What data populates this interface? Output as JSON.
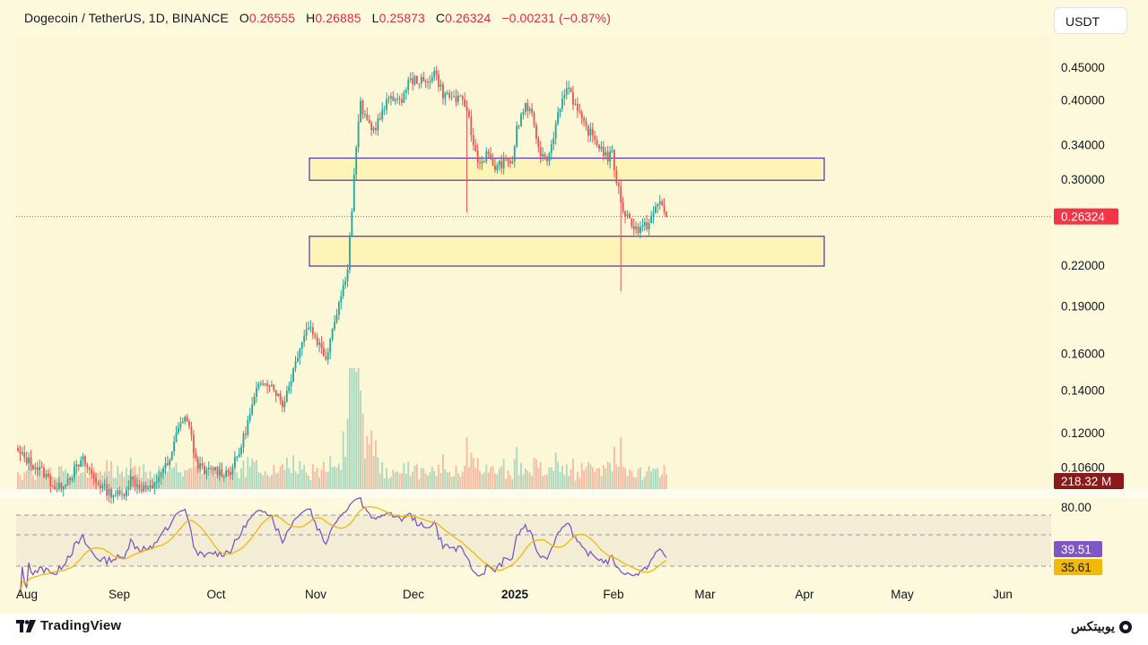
{
  "header": {
    "symbol": "Dogecoin / TetherUS, 1D, BINANCE",
    "o_label": "O",
    "o_value": "0.26555",
    "h_label": "H",
    "h_value": "0.26885",
    "l_label": "L",
    "l_value": "0.25873",
    "c_label": "C",
    "c_value": "0.26324",
    "change": "−0.00231 (−0.87%)"
  },
  "currency_button": "USDT",
  "footer": {
    "brand": "TradingView",
    "partner": "یوبیتکس"
  },
  "colors": {
    "background": "#fdf9dc",
    "bull": "#26a69a",
    "bear": "#ef5350",
    "zone_fill": "#fff4b8",
    "zone_border": "#5b3fa8",
    "rsi_line": "#7e57c2",
    "rsi_ma": "#f0b90b",
    "price_label": "#f23645",
    "volume_label": "#8b1a1a"
  },
  "chart_data": {
    "type": "candlestick",
    "y_scale": "log",
    "price_axis_ticks": [
      "0.45000",
      "0.40000",
      "0.34000",
      "0.30000",
      "0.22000",
      "0.19000",
      "0.16000",
      "0.14000",
      "0.12000",
      "0.10600"
    ],
    "x_axis_ticks": [
      "Aug",
      "Sep",
      "Oct",
      "Nov",
      "Dec",
      "2025",
      "Feb",
      "Mar",
      "Apr",
      "May",
      "Jun"
    ],
    "last_price": "0.26324",
    "volume_value": "218.32 M",
    "rsi_level": "80.00",
    "rsi_value": "39.51",
    "rsi_ma_value": "35.61",
    "zones": [
      {
        "from": 0.3,
        "to": 0.325
      },
      {
        "from": 0.22,
        "to": 0.245
      }
    ],
    "anchors": [
      [
        0,
        0.112
      ],
      [
        6,
        0.108
      ],
      [
        12,
        0.104
      ],
      [
        18,
        0.098
      ],
      [
        24,
        0.103
      ],
      [
        30,
        0.109
      ],
      [
        36,
        0.101
      ],
      [
        42,
        0.097
      ],
      [
        48,
        0.096
      ],
      [
        52,
        0.102
      ],
      [
        56,
        0.099
      ],
      [
        62,
        0.098
      ],
      [
        66,
        0.105
      ],
      [
        70,
        0.108
      ],
      [
        74,
        0.124
      ],
      [
        78,
        0.127
      ],
      [
        82,
        0.109
      ],
      [
        86,
        0.104
      ],
      [
        90,
        0.106
      ],
      [
        94,
        0.104
      ],
      [
        98,
        0.105
      ],
      [
        102,
        0.112
      ],
      [
        106,
        0.125
      ],
      [
        110,
        0.14
      ],
      [
        114,
        0.146
      ],
      [
        118,
        0.142
      ],
      [
        122,
        0.133
      ],
      [
        126,
        0.147
      ],
      [
        130,
        0.165
      ],
      [
        134,
        0.178
      ],
      [
        138,
        0.168
      ],
      [
        142,
        0.158
      ],
      [
        146,
        0.182
      ],
      [
        150,
        0.204
      ],
      [
        152,
        0.22
      ],
      [
        154,
        0.27
      ],
      [
        156,
        0.34
      ],
      [
        158,
        0.395
      ],
      [
        160,
        0.375
      ],
      [
        164,
        0.36
      ],
      [
        168,
        0.382
      ],
      [
        172,
        0.41
      ],
      [
        176,
        0.395
      ],
      [
        180,
        0.428
      ],
      [
        184,
        0.432
      ],
      [
        188,
        0.425
      ],
      [
        192,
        0.445
      ],
      [
        196,
        0.41
      ],
      [
        200,
        0.405
      ],
      [
        204,
        0.4
      ],
      [
        207,
        0.39
      ],
      [
        210,
        0.34
      ],
      [
        213,
        0.318
      ],
      [
        216,
        0.33
      ],
      [
        220,
        0.314
      ],
      [
        224,
        0.32
      ],
      [
        228,
        0.322
      ],
      [
        230,
        0.36
      ],
      [
        234,
        0.395
      ],
      [
        238,
        0.37
      ],
      [
        240,
        0.335
      ],
      [
        244,
        0.325
      ],
      [
        248,
        0.365
      ],
      [
        250,
        0.395
      ],
      [
        254,
        0.425
      ],
      [
        256,
        0.4
      ],
      [
        260,
        0.37
      ],
      [
        264,
        0.355
      ],
      [
        268,
        0.34
      ],
      [
        272,
        0.325
      ],
      [
        274,
        0.33
      ],
      [
        276,
        0.3
      ],
      [
        279,
        0.27
      ],
      [
        282,
        0.26
      ],
      [
        286,
        0.25
      ],
      [
        290,
        0.255
      ],
      [
        294,
        0.27
      ],
      [
        296,
        0.278
      ],
      [
        299,
        0.263
      ]
    ]
  }
}
